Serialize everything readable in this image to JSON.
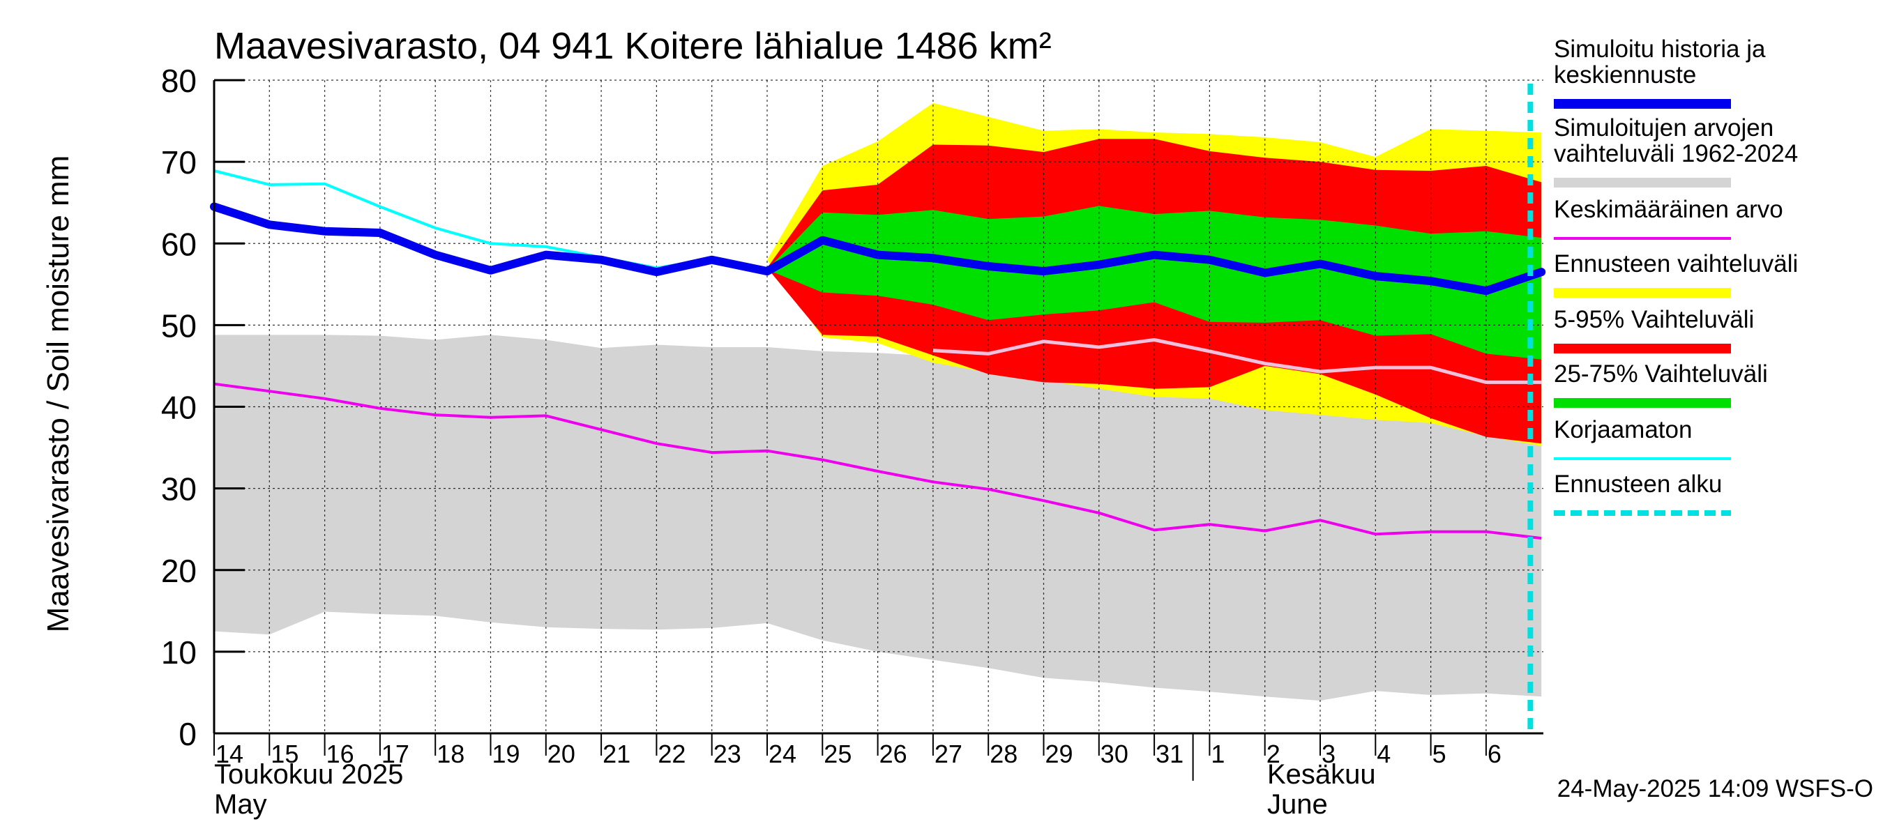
{
  "chart_data": {
    "type": "area",
    "title": "Maavesivarasto, 04 941 Koitere lähialue 1486 km²",
    "ylabel": "Maavesivarasto / Soil moisture   mm",
    "ylim": [
      0,
      80
    ],
    "y_ticks": [
      "0",
      "10",
      "20",
      "30",
      "40",
      "50",
      "60",
      "70",
      "80"
    ],
    "x_ticks": [
      "14",
      "15",
      "16",
      "17",
      "18",
      "19",
      "20",
      "21",
      "22",
      "23",
      "24",
      "25",
      "26",
      "27",
      "28",
      "29",
      "30",
      "31",
      "1",
      "2",
      "3",
      "4",
      "5",
      "6"
    ],
    "month_labels": {
      "may_fi": "Toukokuu  2025",
      "may_en": "May",
      "june_fi": "Kesäkuu",
      "june_en": "June"
    },
    "timestamp": "24-May-2025 14:09 WSFS-O",
    "grid": true,
    "legend_position": "right",
    "forecast_start_index": 23.8,
    "colors": {
      "history_band": "#d4d4d4",
      "forecast_band": "#ffff00",
      "band_5_95": "#ff0000",
      "band_25_75": "#00e000",
      "mean": "#ee00ee",
      "main": "#0000ee",
      "uncorrected": "#00ffff",
      "forecast_start": "#00e0e0",
      "median_forecast": "#f2c0dc"
    },
    "legend": [
      {
        "label": "Simuloitu historia ja keskiennuste",
        "lines": [
          "Simuloitu historia ja",
          "keskiennuste"
        ],
        "color": "#0000ee",
        "style": "thick"
      },
      {
        "label": "Simuloitujen arvojen vaihteluväli 1962-2024",
        "lines": [
          "Simuloitujen arvojen",
          "vaihteluväli 1962-2024"
        ],
        "color": "#d4d4d4",
        "style": "band"
      },
      {
        "label": "Keskimääräinen arvo",
        "lines": [
          "Keskimääräinen arvo"
        ],
        "color": "#ee00ee",
        "style": "line"
      },
      {
        "label": "Ennusteen vaihteluväli",
        "lines": [
          "Ennusteen vaihteluväli"
        ],
        "color": "#ffff00",
        "style": "band"
      },
      {
        "label": "5-95% Vaihteluväli",
        "lines": [
          "5-95% Vaihteluväli"
        ],
        "color": "#ff0000",
        "style": "band"
      },
      {
        "label": "25-75% Vaihteluväli",
        "lines": [
          "25-75% Vaihteluväli"
        ],
        "color": "#00e000",
        "style": "band"
      },
      {
        "label": "Korjaamaton",
        "lines": [
          "Korjaamaton"
        ],
        "color": "#00ffff",
        "style": "line"
      },
      {
        "label": "Ennusteen alku",
        "lines": [
          "Ennusteen alku"
        ],
        "color": "#00e0e0",
        "style": "dashed"
      }
    ],
    "series": {
      "history_range": {
        "x": [
          0,
          1,
          2,
          3,
          4,
          5,
          6,
          7,
          8,
          9,
          10,
          11,
          12,
          13,
          14,
          15,
          16,
          17,
          18,
          19,
          20,
          21,
          22,
          23,
          24
        ],
        "upper": [
          48.8,
          48.8,
          48.8,
          48.7,
          48.2,
          48.8,
          48.2,
          47.2,
          47.6,
          47.3,
          47.3,
          46.8,
          46.6,
          46.2,
          45.0,
          44.2,
          43.5,
          42.5,
          41.5,
          41.0,
          40.5,
          39.5,
          38.6,
          37.3,
          35.5
        ],
        "lower": [
          12.5,
          12.1,
          14.9,
          14.6,
          14.4,
          13.6,
          13.0,
          12.8,
          12.7,
          12.9,
          13.5,
          11.4,
          10.0,
          9.0,
          8.0,
          6.8,
          6.3,
          5.6,
          5.1,
          4.5,
          4.0,
          5.2,
          4.7,
          4.9,
          4.5
        ]
      },
      "forecast_range": {
        "x": [
          10,
          11,
          12,
          13,
          14,
          15,
          16,
          17,
          18,
          19,
          20,
          21,
          22,
          23,
          24
        ],
        "upper": [
          58.0,
          69.5,
          72.5,
          77.2,
          75.5,
          73.8,
          74.0,
          73.6,
          73.4,
          73.0,
          72.4,
          70.6,
          74.0,
          73.8,
          73.6
        ],
        "lower": [
          58.0,
          48.5,
          47.8,
          45.4,
          44.2,
          43.2,
          42.2,
          41.2,
          41.0,
          39.6,
          39.0,
          38.4,
          38.0,
          36.4,
          35.2
        ]
      },
      "band_5_95": {
        "x": [
          10,
          11,
          12,
          13,
          14,
          15,
          16,
          17,
          18,
          19,
          20,
          21,
          22,
          23,
          24
        ],
        "upper": [
          57.0,
          66.5,
          67.2,
          72.1,
          72.0,
          71.2,
          72.8,
          72.8,
          71.3,
          70.5,
          70.0,
          69.0,
          68.9,
          69.5,
          67.5
        ],
        "lower": [
          57.0,
          48.8,
          48.6,
          46.3,
          44.0,
          43.0,
          42.8,
          42.2,
          42.4,
          45.0,
          44.0,
          41.5,
          38.6,
          36.3,
          35.5
        ]
      },
      "band_25_75": {
        "x": [
          10,
          11,
          12,
          13,
          14,
          15,
          16,
          17,
          18,
          19,
          20,
          21,
          22,
          23,
          24
        ],
        "upper": [
          56.8,
          63.8,
          63.5,
          64.1,
          63.0,
          63.3,
          64.6,
          63.6,
          64.0,
          63.2,
          62.9,
          62.2,
          61.2,
          61.5,
          60.7
        ],
        "lower": [
          56.8,
          54.0,
          53.6,
          52.5,
          50.6,
          51.3,
          51.8,
          52.8,
          50.4,
          50.3,
          50.6,
          48.7,
          48.9,
          46.5,
          45.8
        ]
      },
      "mean": {
        "x": [
          0,
          1,
          2,
          3,
          4,
          5,
          6,
          7,
          8,
          9,
          10,
          11,
          12,
          13,
          14,
          15,
          16,
          17,
          18,
          19,
          20,
          21,
          22,
          23,
          24
        ],
        "y": [
          42.8,
          41.9,
          41.0,
          39.8,
          39.0,
          38.7,
          38.9,
          37.2,
          35.5,
          34.4,
          34.6,
          33.5,
          32.1,
          30.8,
          29.9,
          28.5,
          27.0,
          24.9,
          25.6,
          24.8,
          26.1,
          24.4,
          24.7,
          24.7,
          23.9
        ]
      },
      "median_forecast": {
        "x": [
          13,
          14,
          15,
          16,
          17,
          18,
          19,
          20,
          21,
          22,
          23,
          24
        ],
        "y": [
          46.9,
          46.5,
          48.0,
          47.3,
          48.2,
          46.8,
          45.3,
          44.3,
          44.8,
          44.8,
          43.0,
          43.0
        ]
      },
      "uncorrected": {
        "x": [
          0,
          1,
          2,
          3,
          4,
          5,
          6,
          7,
          8,
          9,
          10
        ],
        "y": [
          68.9,
          67.2,
          67.3,
          64.5,
          61.9,
          60.0,
          59.6,
          58.3,
          57.0,
          58.1,
          56.7
        ]
      },
      "main": {
        "x": [
          0,
          1,
          2,
          3,
          4,
          5,
          6,
          7,
          8,
          9,
          10,
          11,
          12,
          13,
          14,
          15,
          16,
          17,
          18,
          19,
          20,
          21,
          22,
          23,
          24
        ],
        "y": [
          64.5,
          62.3,
          61.5,
          61.3,
          58.6,
          56.7,
          58.6,
          58.0,
          56.5,
          58.0,
          56.6,
          60.4,
          58.6,
          58.2,
          57.2,
          56.6,
          57.4,
          58.6,
          58.0,
          56.4,
          57.5,
          56.0,
          55.4,
          54.2,
          56.5
        ]
      }
    }
  }
}
